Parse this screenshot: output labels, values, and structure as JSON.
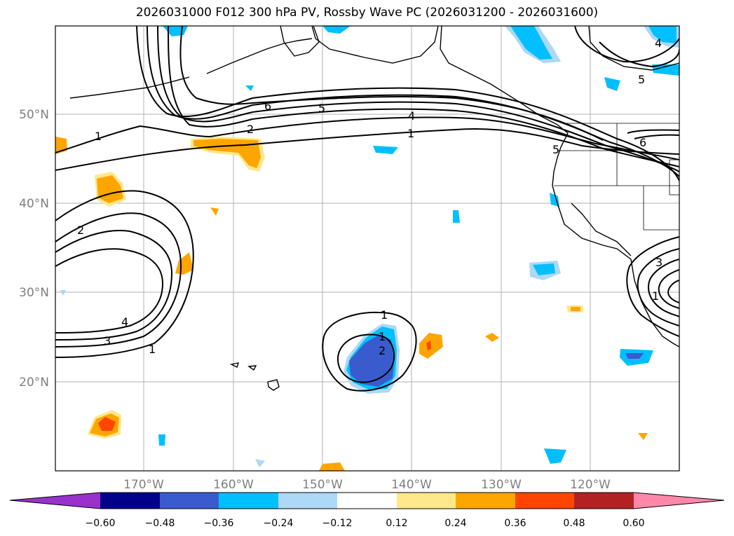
{
  "title": "2026031000 F012 300 hPa PV, Rossby Wave PC (2026031200 - 2026031600)",
  "lat_labels": [
    "50°N",
    "40°N",
    "30°N",
    "20°N"
  ],
  "lon_labels": [
    "170°W",
    "160°W",
    "150°W",
    "140°W",
    "130°W",
    "120°W"
  ],
  "contour_labels": [
    "1",
    "2",
    "6",
    "5",
    "4",
    "1",
    "1",
    "2",
    "4",
    "3",
    "1",
    "1",
    "2",
    "5",
    "6",
    "5",
    "3",
    "4",
    "1"
  ],
  "colorbar": {
    "colors": [
      "#9932cc",
      "#00008b",
      "#3a5bcd",
      "#00bfff",
      "#add8f6",
      "#ffffff",
      "#ffe88a",
      "#ffa500",
      "#ff4500",
      "#b22222",
      "#ff88aa"
    ],
    "tick_labels": [
      "−0.60",
      "−0.48",
      "−0.36",
      "−0.24",
      "−0.12",
      "0.12",
      "0.24",
      "0.36",
      "0.48",
      "0.60"
    ]
  }
}
